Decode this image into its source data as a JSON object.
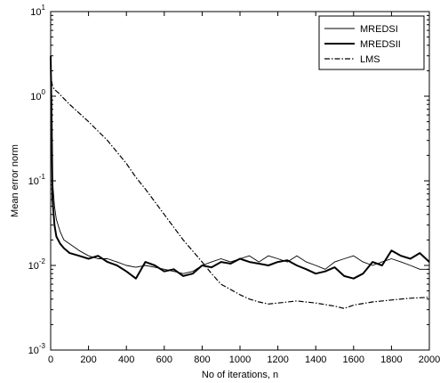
{
  "chart_data": {
    "type": "line",
    "title": "",
    "xlabel": "No of iterations, n",
    "ylabel": "Mean error norm",
    "xlim": [
      0,
      2000
    ],
    "ylim": [
      0.001,
      10
    ],
    "yscale": "log",
    "grid": false,
    "legend_position": "top-right",
    "x_ticks": [
      0,
      200,
      400,
      600,
      800,
      1000,
      1200,
      1400,
      1600,
      1800,
      2000
    ],
    "y_ticks": [
      {
        "base": "10",
        "exp": "-3",
        "value": 0.001
      },
      {
        "base": "10",
        "exp": "-2",
        "value": 0.01
      },
      {
        "base": "10",
        "exp": "-1",
        "value": 0.1
      },
      {
        "base": "10",
        "exp": "0",
        "value": 1
      },
      {
        "base": "10",
        "exp": "1",
        "value": 10
      }
    ],
    "series": [
      {
        "name": "MREDSI",
        "style": "thin-solid",
        "x": [
          0,
          5,
          10,
          20,
          30,
          50,
          70,
          100,
          150,
          200,
          250,
          300,
          350,
          400,
          450,
          500,
          550,
          600,
          650,
          700,
          750,
          800,
          850,
          900,
          950,
          1000,
          1050,
          1100,
          1150,
          1200,
          1250,
          1300,
          1350,
          1400,
          1450,
          1500,
          1550,
          1600,
          1650,
          1700,
          1750,
          1800,
          1850,
          1900,
          1950,
          2000
        ],
        "y": [
          2.5,
          0.4,
          0.1,
          0.05,
          0.035,
          0.025,
          0.02,
          0.018,
          0.015,
          0.013,
          0.012,
          0.012,
          0.011,
          0.01,
          0.0095,
          0.01,
          0.0095,
          0.009,
          0.0085,
          0.008,
          0.0085,
          0.01,
          0.011,
          0.012,
          0.011,
          0.012,
          0.013,
          0.011,
          0.013,
          0.012,
          0.011,
          0.013,
          0.011,
          0.01,
          0.009,
          0.011,
          0.012,
          0.013,
          0.011,
          0.01,
          0.011,
          0.012,
          0.011,
          0.01,
          0.009,
          0.009
        ]
      },
      {
        "name": "MREDSII",
        "style": "thick-solid",
        "x": [
          0,
          5,
          10,
          20,
          30,
          50,
          70,
          100,
          150,
          200,
          250,
          300,
          350,
          400,
          450,
          500,
          550,
          600,
          650,
          700,
          750,
          800,
          850,
          900,
          950,
          1000,
          1050,
          1100,
          1150,
          1200,
          1250,
          1300,
          1350,
          1400,
          1450,
          1500,
          1550,
          1600,
          1650,
          1700,
          1750,
          1800,
          1850,
          1900,
          1950,
          2000
        ],
        "y": [
          3.0,
          0.5,
          0.06,
          0.03,
          0.022,
          0.018,
          0.016,
          0.014,
          0.013,
          0.012,
          0.013,
          0.011,
          0.01,
          0.0085,
          0.007,
          0.011,
          0.01,
          0.0085,
          0.009,
          0.0075,
          0.008,
          0.01,
          0.0095,
          0.011,
          0.0105,
          0.012,
          0.011,
          0.0105,
          0.01,
          0.011,
          0.0115,
          0.01,
          0.009,
          0.008,
          0.0085,
          0.0095,
          0.0075,
          0.007,
          0.008,
          0.011,
          0.01,
          0.015,
          0.013,
          0.012,
          0.014,
          0.011
        ]
      },
      {
        "name": "LMS",
        "style": "dash-dot",
        "x": [
          0,
          5,
          10,
          20,
          40,
          100,
          200,
          300,
          400,
          450,
          500,
          600,
          700,
          800,
          850,
          900,
          1000,
          1050,
          1100,
          1150,
          1200,
          1300,
          1400,
          1500,
          1550,
          1600,
          1700,
          1800,
          1900,
          2000
        ],
        "y": [
          2.0,
          1.5,
          1.3,
          1.2,
          1.1,
          0.8,
          0.5,
          0.3,
          0.16,
          0.11,
          0.08,
          0.04,
          0.02,
          0.011,
          0.008,
          0.006,
          0.0045,
          0.004,
          0.0037,
          0.0035,
          0.0036,
          0.0038,
          0.0036,
          0.0033,
          0.0031,
          0.0034,
          0.0037,
          0.0039,
          0.0041,
          0.0042
        ]
      }
    ]
  }
}
